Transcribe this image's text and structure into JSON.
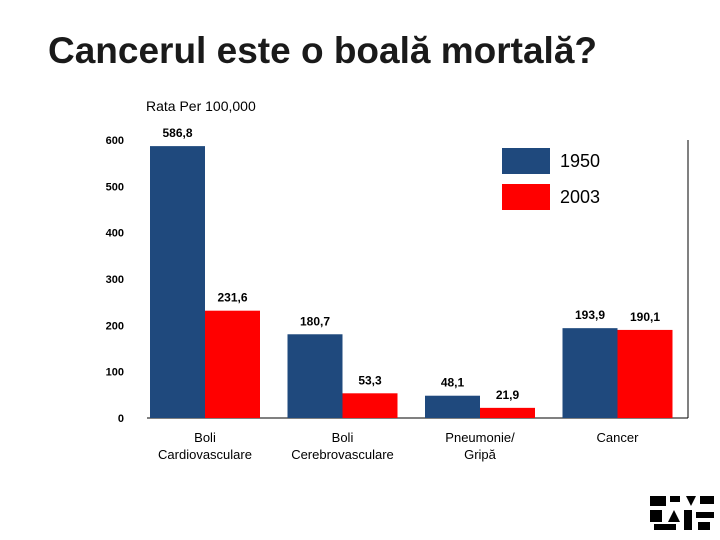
{
  "slide": {
    "title": "Cancerul este o boală mortală?"
  },
  "chart_data": {
    "type": "bar",
    "ylabel": "Rata Per 100,000",
    "ylim": [
      0,
      600
    ],
    "yticks": [
      0,
      100,
      200,
      300,
      400,
      500,
      600
    ],
    "categories": [
      [
        "Boli",
        "Cardiovasculare"
      ],
      [
        "Boli",
        "Cerebrovasculare"
      ],
      [
        "Pneumonie/",
        "Gripă"
      ],
      [
        "Cancer"
      ]
    ],
    "series": [
      {
        "name": "1950",
        "values": [
          586.8,
          180.7,
          48.1,
          193.9
        ],
        "labels": [
          "586,8",
          "180,7",
          "48,1",
          "193,9"
        ],
        "color": "#1f497d"
      },
      {
        "name": "2003",
        "values": [
          231.6,
          53.3,
          21.9,
          190.1
        ],
        "labels": [
          "231,6",
          "53,3",
          "21,9",
          "190,1"
        ],
        "color": "#ff0000"
      }
    ],
    "legend_position": "top-right",
    "grid": false
  },
  "logo": {
    "name": "corner-logo",
    "colors": [
      "#000000",
      "#ffffff"
    ]
  }
}
